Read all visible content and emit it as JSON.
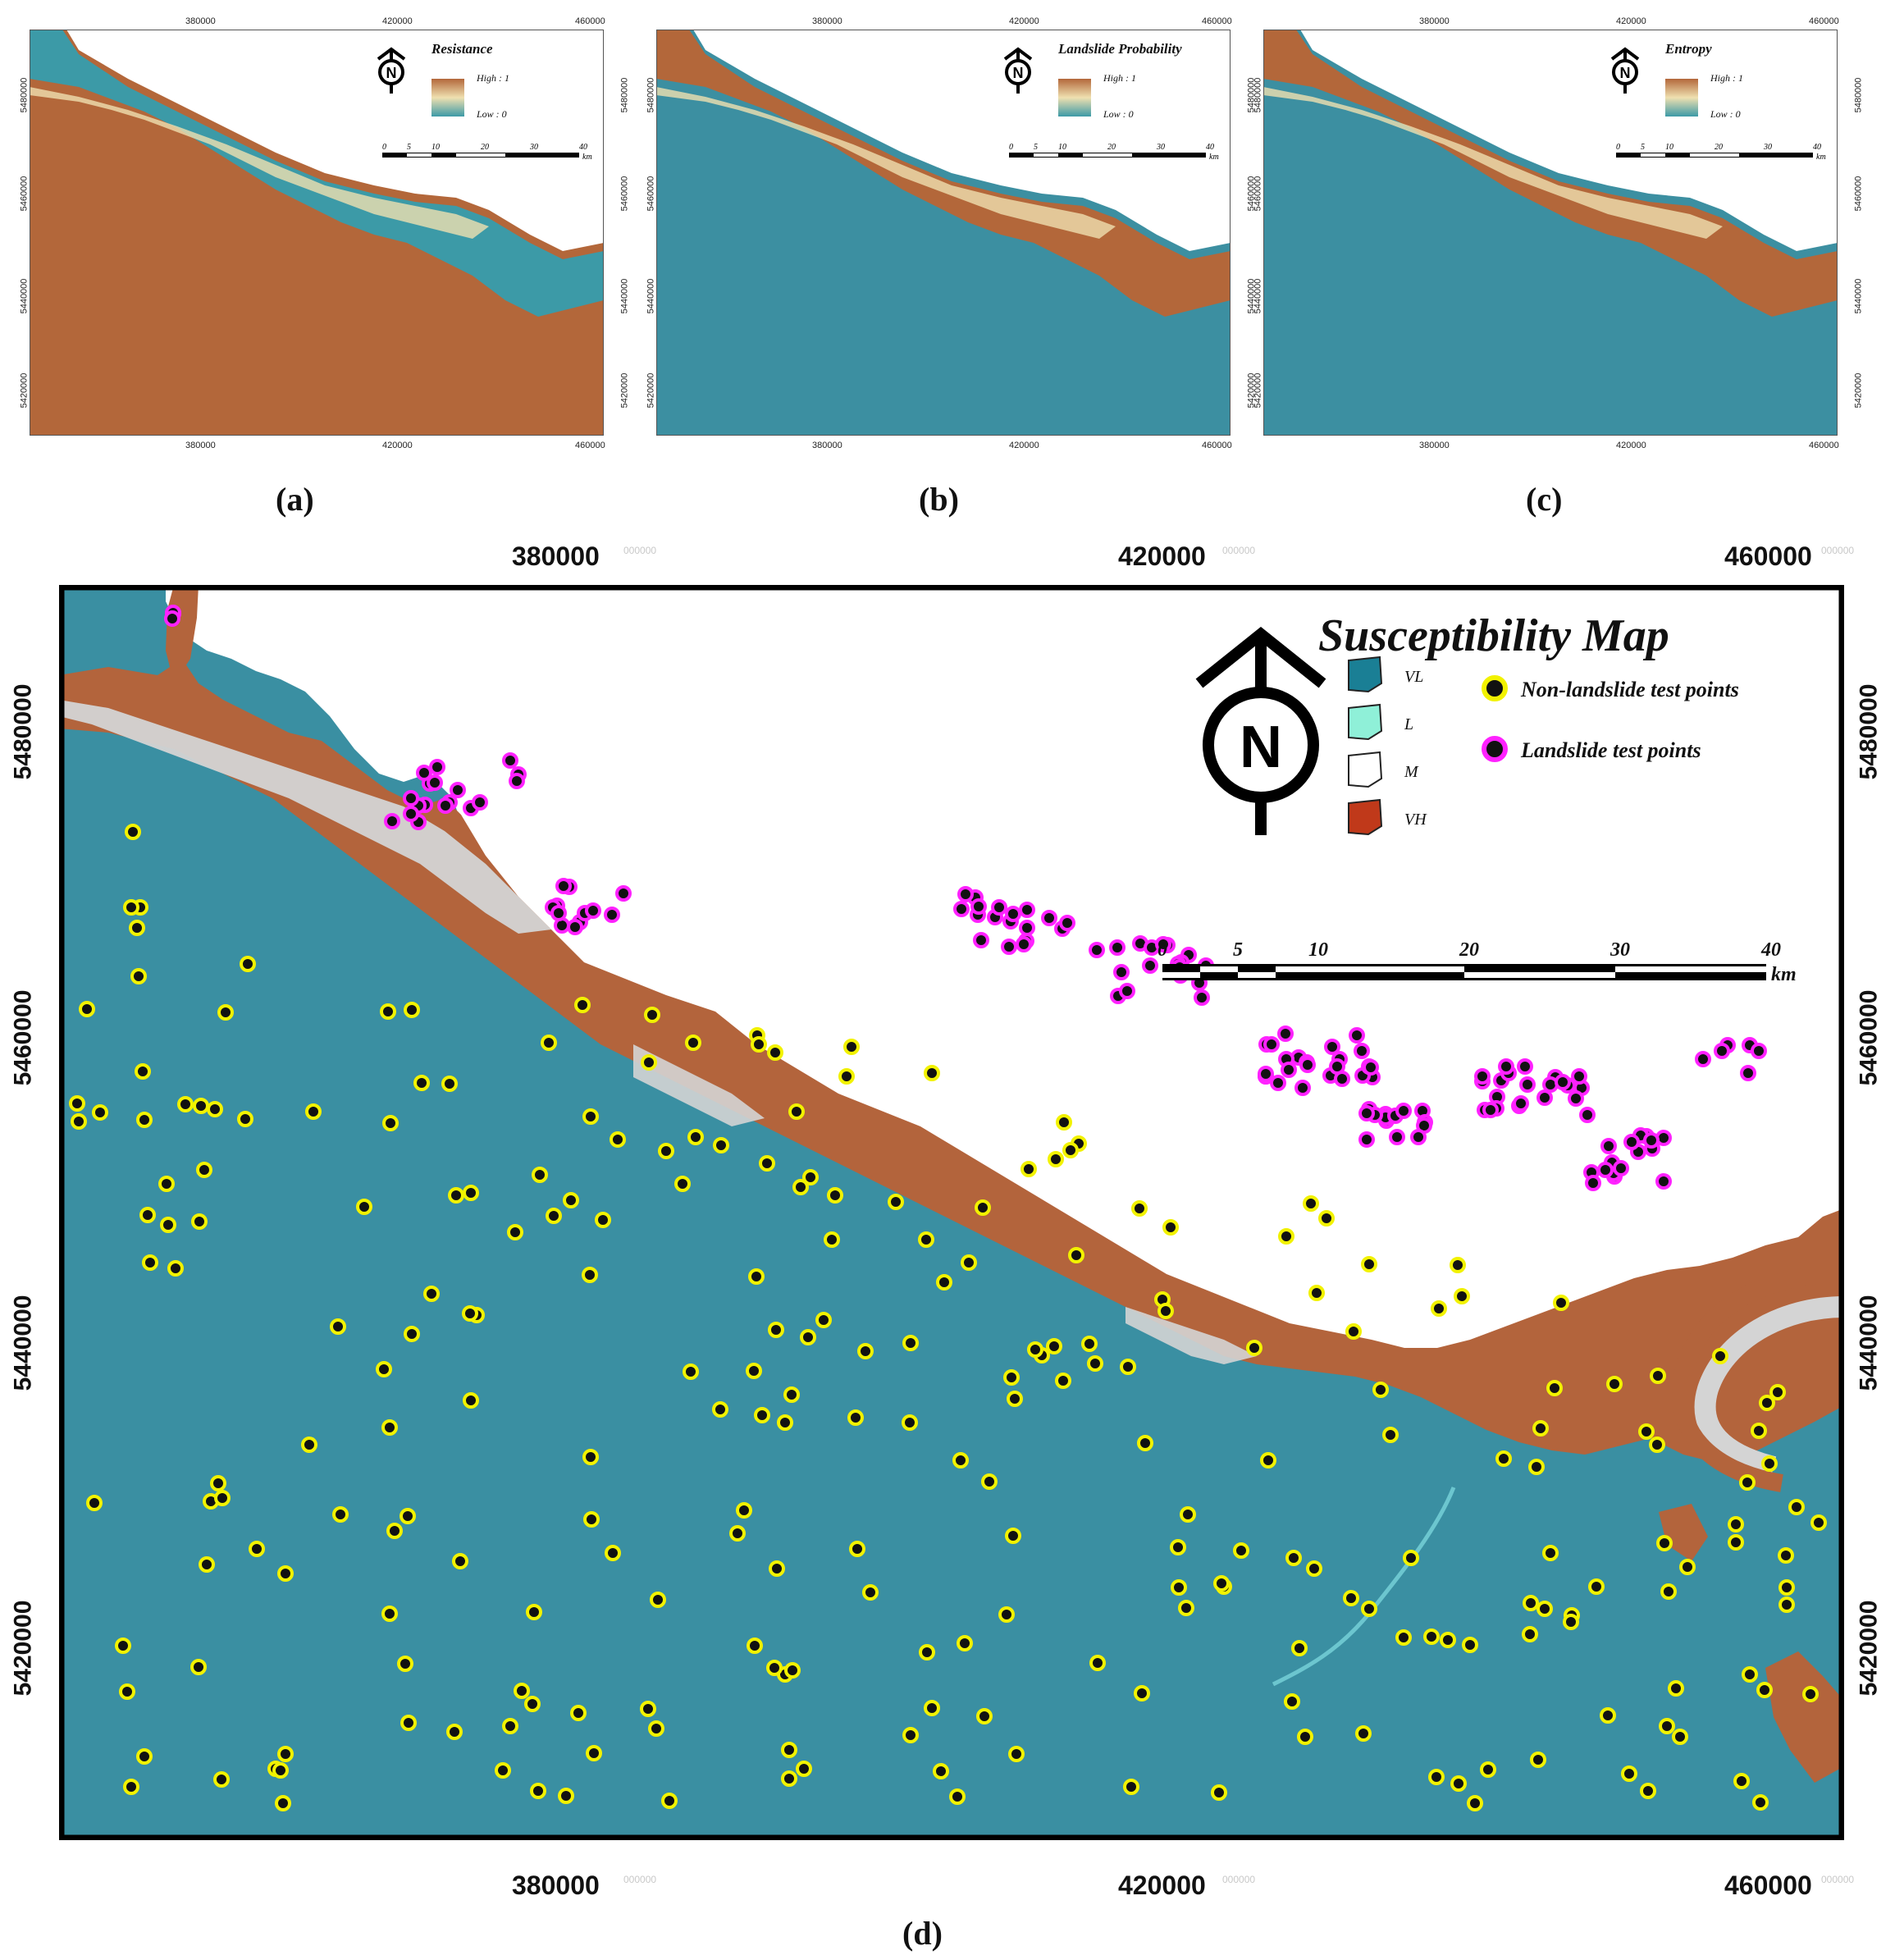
{
  "small_panels": [
    {
      "id": "a",
      "panel_label": "(a)",
      "legend_title": "Resistance",
      "legend_high": "High : 1",
      "legend_low": "Low : 0",
      "background_color": "#b3673a",
      "coast_color": "#3c9aa7",
      "x_ticks": [
        "380000",
        "420000",
        "460000"
      ],
      "y_ticks": [
        "5480000",
        "5460000",
        "5440000",
        "5420000"
      ],
      "scale_ticks": [
        "0",
        "5",
        "10",
        "20",
        "30",
        "40"
      ],
      "scale_unit": "km",
      "north_label": "N"
    },
    {
      "id": "b",
      "panel_label": "(b)",
      "legend_title": "Landslide Probability",
      "legend_high": "High : 1",
      "legend_low": "Low : 0",
      "background_color": "#3c8fa1",
      "coast_color": "#b3673a",
      "x_ticks": [
        "380000",
        "420000",
        "460000"
      ],
      "y_ticks": [
        "5480000",
        "5460000",
        "5440000",
        "5420000"
      ],
      "scale_ticks": [
        "0",
        "5",
        "10",
        "20",
        "30",
        "40"
      ],
      "scale_unit": "km",
      "north_label": "N"
    },
    {
      "id": "c",
      "panel_label": "(c)",
      "legend_title": "Entropy",
      "legend_high": "High : 1",
      "legend_low": "Low : 0",
      "background_color": "#3c8fa1",
      "coast_color": "#b3673a",
      "x_ticks": [
        "380000",
        "420000",
        "460000"
      ],
      "y_ticks": [
        "5480000",
        "5460000",
        "5440000",
        "5420000"
      ],
      "scale_ticks": [
        "0",
        "5",
        "10",
        "20",
        "30",
        "40"
      ],
      "scale_unit": "km",
      "north_label": "N"
    }
  ],
  "main_map": {
    "panel_label": "(d)",
    "title": "Susceptibility Map",
    "north_label": "N",
    "x_ticks": [
      "380000",
      "420000",
      "460000"
    ],
    "y_ticks": [
      "5480000",
      "5460000",
      "5440000",
      "5420000"
    ],
    "x_tick_suffix": "000000",
    "classes": [
      {
        "label": "VL",
        "color": "#1a7f95"
      },
      {
        "label": "L",
        "color": "#8ff0d8"
      },
      {
        "label": "M",
        "color": "#ffffff"
      },
      {
        "label": "VH",
        "color": "#c0391a"
      }
    ],
    "point_legend": [
      {
        "label": "Non-landslide test points",
        "ring_color": "#f2f200"
      },
      {
        "label": "Landslide test points",
        "ring_color": "#ff22ff"
      }
    ],
    "scale_ticks": [
      "0",
      "5",
      "10",
      "20",
      "30",
      "40"
    ],
    "scale_unit": "km",
    "colors": {
      "very_low": "#3a8fa2",
      "moderate": "#d4d4d4",
      "very_high": "#b3643c",
      "non_landslide_ring": "#f2f200",
      "landslide_ring": "#ff22ff",
      "point_core": "#111111"
    }
  }
}
